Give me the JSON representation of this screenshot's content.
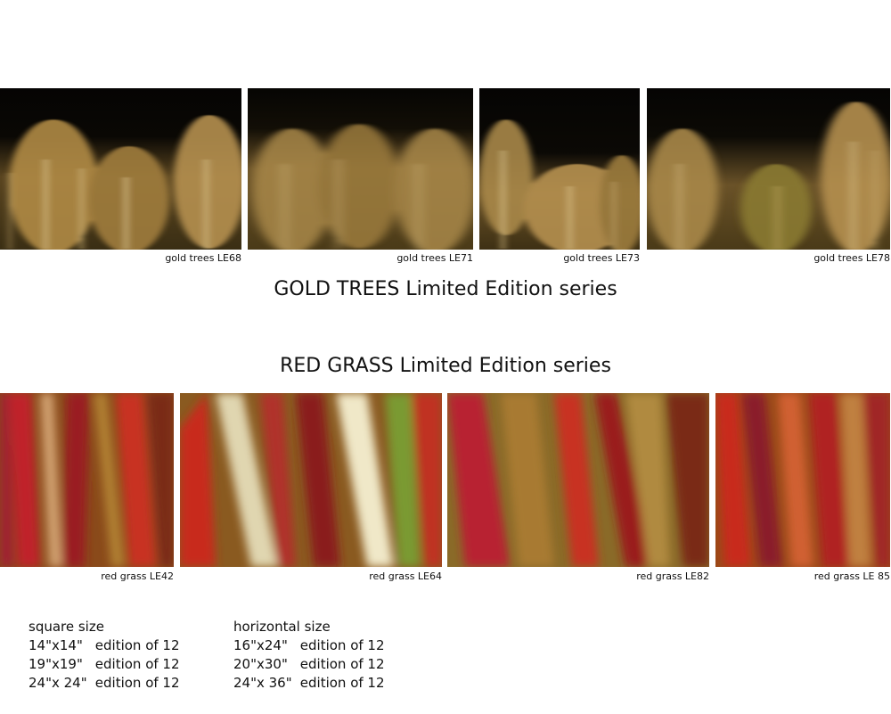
{
  "gold_trees": {
    "title": "GOLD TREES Limited Edition series",
    "photos": [
      {
        "caption": "gold trees LE68"
      },
      {
        "caption": "gold trees LE71"
      },
      {
        "caption": "gold trees LE73"
      },
      {
        "caption": "gold trees LE78"
      }
    ]
  },
  "red_grass": {
    "title": "RED GRASS Limited Edition series",
    "photos": [
      {
        "caption": "red grass LE42"
      },
      {
        "caption": "red grass LE64"
      },
      {
        "caption": "red grass LE82"
      },
      {
        "caption": "red grass LE 85"
      }
    ]
  },
  "square": {
    "heading": "square size",
    "rows": [
      {
        "dim": "14\"x14\"",
        "edition": "edition of 12"
      },
      {
        "dim": "19\"x19\"",
        "edition": "edition of 12"
      },
      {
        "dim": "24\"x 24\"",
        "edition": "edition of 12"
      }
    ]
  },
  "horizontal": {
    "heading": "horizontal size",
    "rows": [
      {
        "dim": "16\"x24\"",
        "edition": "edition of 12"
      },
      {
        "dim": "20\"x30\"",
        "edition": "edition of 12"
      },
      {
        "dim": "24\"x 36\"",
        "edition": "edition of 12"
      }
    ]
  }
}
